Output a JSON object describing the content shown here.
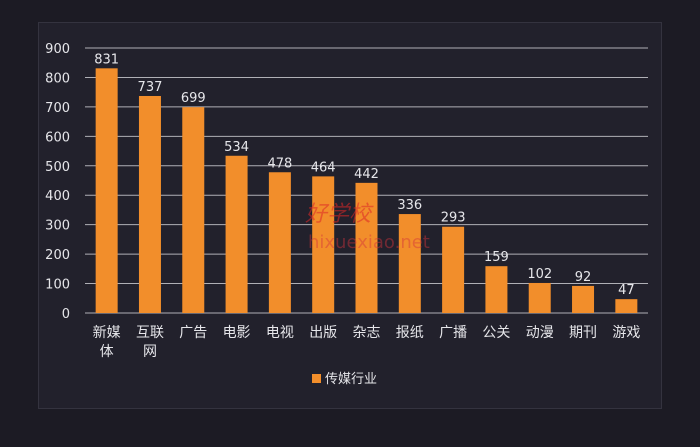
{
  "chart_data": {
    "type": "bar",
    "categories": [
      "新媒体",
      "互联网",
      "广告",
      "电影",
      "电视",
      "出版",
      "杂志",
      "报纸",
      "广播",
      "公关",
      "动漫",
      "期刊",
      "游戏"
    ],
    "series": [
      {
        "name": "传媒行业",
        "values": [
          831,
          737,
          699,
          534,
          478,
          464,
          442,
          336,
          293,
          159,
          102,
          92,
          47
        ],
        "color": "#f28e2b"
      }
    ],
    "ylim": [
      0,
      900
    ],
    "yticks": [
      0,
      100,
      200,
      300,
      400,
      500,
      600,
      700,
      800,
      900
    ],
    "grid": true,
    "legend_position": "bottom-center"
  },
  "watermark": {
    "logo_text": "好学校",
    "url_text": "hixuexiao.net"
  },
  "colors": {
    "background": "#1c1b24",
    "panel": "#22212c",
    "gridline": "#c9c9cf",
    "text": "#e6e6ea",
    "bar": "#f28e2b"
  }
}
